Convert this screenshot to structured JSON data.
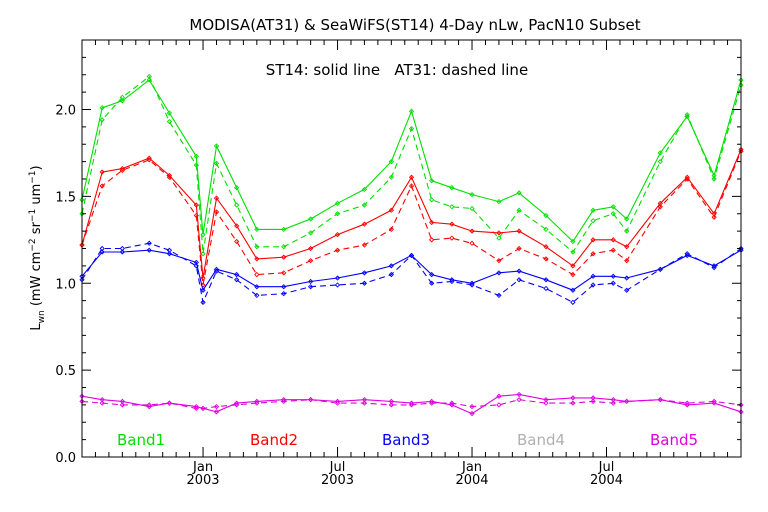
{
  "chart_data": {
    "type": "line",
    "title": "MODISA(AT31) & SeaWiFS(ST14) 4-Day nLw, PacN10 Subset",
    "annotation": "ST14: solid line   AT31: dashed line",
    "ylabel": "L_wn (mW cm^-2 sr^-1 um^-1)",
    "ylabel_parts": {
      "main": "L",
      "sub": "wn",
      "open": " (mW cm",
      "e1": "−2",
      "mid1": " sr",
      "e2": "−1",
      "mid2": " um",
      "e3": "−1",
      "close": ")"
    },
    "xlim": [
      0,
      49
    ],
    "ylim": [
      0,
      2.4
    ],
    "y_ticks": [
      {
        "value": 0.0,
        "label": "0.0"
      },
      {
        "value": 0.5,
        "label": "0.5"
      },
      {
        "value": 1.0,
        "label": "1.0"
      },
      {
        "value": 1.5,
        "label": "1.5"
      },
      {
        "value": 2.0,
        "label": "2.0"
      }
    ],
    "x_ticks": [
      {
        "value": 9,
        "label": "Jan",
        "sublabel": "2003"
      },
      {
        "value": 19,
        "label": "Jul",
        "sublabel": "2003"
      },
      {
        "value": 29,
        "label": "Jan",
        "sublabel": "2004"
      },
      {
        "value": 39,
        "label": "Jul",
        "sublabel": "2004"
      }
    ],
    "x_minor_ticks": [
      1,
      2,
      3,
      4,
      5,
      6,
      7,
      8,
      10,
      11,
      12,
      13,
      14,
      15,
      16,
      17,
      18,
      20,
      21,
      22,
      23,
      24,
      25,
      26,
      27,
      28,
      30,
      31,
      32,
      33,
      34,
      35,
      36,
      37,
      38,
      40,
      41,
      42,
      43,
      44,
      45,
      46,
      47,
      48
    ],
    "x": [
      0,
      1.5,
      3,
      5,
      6.5,
      8.5,
      9,
      10,
      11.5,
      13,
      15,
      17,
      19,
      21,
      23,
      24.5,
      26,
      27.5,
      29,
      31,
      32.5,
      34.5,
      36.5,
      38,
      39.5,
      40.5,
      43,
      45,
      47,
      49
    ],
    "legend_position": "bottom",
    "legend": [
      {
        "label": "Band1",
        "color": "#00e000"
      },
      {
        "label": "Band2",
        "color": "#ff0000"
      },
      {
        "label": "Band3",
        "color": "#0000ff"
      },
      {
        "label": "Band4",
        "color": "#b0b0b0"
      },
      {
        "label": "Band5",
        "color": "#e000e0"
      }
    ],
    "series": [
      {
        "band": "Band1",
        "sensor": "ST14",
        "style": "solid",
        "color": "#00e000",
        "values": [
          1.48,
          2.01,
          2.05,
          2.17,
          1.98,
          1.73,
          1.28,
          1.79,
          1.55,
          1.31,
          1.31,
          1.37,
          1.46,
          1.54,
          1.7,
          1.99,
          1.59,
          1.55,
          1.51,
          1.47,
          1.52,
          1.39,
          1.24,
          1.42,
          1.44,
          1.37,
          1.75,
          1.96,
          1.62,
          2.17
        ]
      },
      {
        "band": "Band1",
        "sensor": "AT31",
        "style": "dashed",
        "color": "#00e000",
        "values": [
          1.4,
          1.94,
          2.07,
          2.19,
          1.93,
          1.68,
          1.17,
          1.69,
          1.45,
          1.21,
          1.21,
          1.29,
          1.4,
          1.45,
          1.61,
          1.89,
          1.48,
          1.44,
          1.43,
          1.26,
          1.42,
          1.31,
          1.18,
          1.36,
          1.4,
          1.3,
          1.7,
          1.97,
          1.6,
          2.14
        ]
      },
      {
        "band": "Band2",
        "sensor": "ST14",
        "style": "solid",
        "color": "#ff0000",
        "values": [
          1.22,
          1.64,
          1.66,
          1.72,
          1.62,
          1.45,
          1.03,
          1.49,
          1.33,
          1.14,
          1.15,
          1.2,
          1.28,
          1.34,
          1.42,
          1.61,
          1.35,
          1.34,
          1.3,
          1.29,
          1.3,
          1.21,
          1.1,
          1.25,
          1.25,
          1.21,
          1.46,
          1.61,
          1.4,
          1.77
        ]
      },
      {
        "band": "Band2",
        "sensor": "AT31",
        "style": "dashed",
        "color": "#ff0000",
        "values": [
          1.22,
          1.56,
          1.65,
          1.71,
          1.61,
          1.39,
          0.99,
          1.41,
          1.24,
          1.05,
          1.06,
          1.13,
          1.19,
          1.22,
          1.31,
          1.56,
          1.25,
          1.26,
          1.23,
          1.13,
          1.2,
          1.14,
          1.05,
          1.17,
          1.19,
          1.13,
          1.44,
          1.6,
          1.38,
          1.76
        ]
      },
      {
        "band": "Band3",
        "sensor": "ST14",
        "style": "solid",
        "color": "#0000ff",
        "values": [
          1.04,
          1.18,
          1.18,
          1.19,
          1.17,
          1.12,
          0.96,
          1.08,
          1.05,
          0.98,
          0.98,
          1.01,
          1.03,
          1.06,
          1.1,
          1.16,
          1.05,
          1.02,
          1.0,
          1.06,
          1.07,
          1.02,
          0.96,
          1.04,
          1.04,
          1.03,
          1.08,
          1.16,
          1.1,
          1.19
        ]
      },
      {
        "band": "Band3",
        "sensor": "AT31",
        "style": "dashed",
        "color": "#0000ff",
        "values": [
          1.02,
          1.2,
          1.2,
          1.23,
          1.19,
          1.1,
          0.89,
          1.07,
          1.02,
          0.93,
          0.94,
          0.98,
          0.99,
          1.0,
          1.05,
          1.16,
          1.0,
          1.01,
          0.99,
          0.93,
          1.02,
          0.97,
          0.89,
          0.99,
          1.0,
          0.96,
          1.08,
          1.17,
          1.09,
          1.2
        ]
      },
      {
        "band": "Band5",
        "sensor": "ST14",
        "style": "solid",
        "color": "#e000e0",
        "values": [
          0.35,
          0.33,
          0.32,
          0.29,
          0.31,
          0.29,
          0.28,
          0.26,
          0.31,
          0.32,
          0.33,
          0.33,
          0.32,
          0.33,
          0.32,
          0.31,
          0.32,
          0.3,
          0.25,
          0.35,
          0.36,
          0.33,
          0.34,
          0.34,
          0.33,
          0.32,
          0.33,
          0.3,
          0.31,
          0.26
        ]
      },
      {
        "band": "Band5",
        "sensor": "AT31",
        "style": "dashed",
        "color": "#e000e0",
        "values": [
          0.32,
          0.31,
          0.3,
          0.3,
          0.31,
          0.28,
          0.28,
          0.29,
          0.3,
          0.31,
          0.32,
          0.33,
          0.31,
          0.31,
          0.3,
          0.3,
          0.31,
          0.31,
          0.29,
          0.3,
          0.33,
          0.31,
          0.31,
          0.32,
          0.31,
          0.32,
          0.33,
          0.31,
          0.32,
          0.3
        ]
      }
    ]
  }
}
